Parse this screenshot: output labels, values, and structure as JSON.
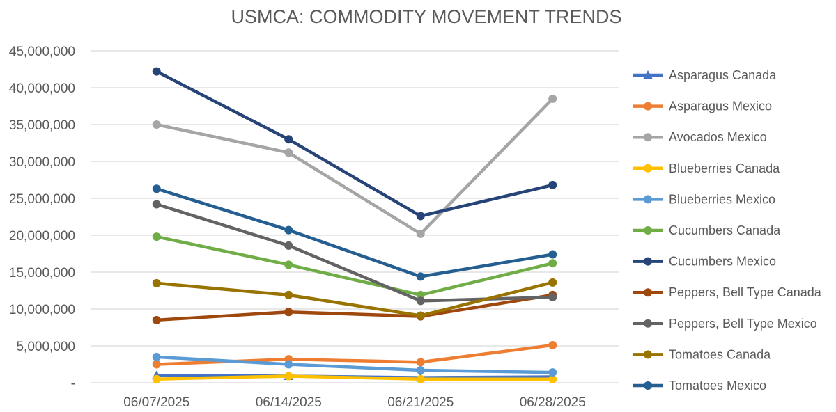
{
  "chart_data": {
    "type": "line",
    "title": "USMCA: COMMODITY MOVEMENT TRENDS",
    "categories": [
      "06/07/2025",
      "06/14/2025",
      "06/21/2025",
      "06/28/2025"
    ],
    "ylim": [
      0,
      45000000
    ],
    "yticks": [
      {
        "value": 0,
        "label": "-"
      },
      {
        "value": 5000000,
        "label": "5,000,000"
      },
      {
        "value": 10000000,
        "label": "10,000,000"
      },
      {
        "value": 15000000,
        "label": "15,000,000"
      },
      {
        "value": 20000000,
        "label": "20,000,000"
      },
      {
        "value": 25000000,
        "label": "25,000,000"
      },
      {
        "value": 30000000,
        "label": "30,000,000"
      },
      {
        "value": 35000000,
        "label": "35,000,000"
      },
      {
        "value": 40000000,
        "label": "40,000,000"
      },
      {
        "value": 45000000,
        "label": "45,000,000"
      }
    ],
    "grid": true,
    "legend_position": "right",
    "series": [
      {
        "name": "Asparagus Canada",
        "color": "#4472C4",
        "marker": "triangle",
        "values": [
          1000000,
          900000,
          700000,
          800000
        ]
      },
      {
        "name": "Asparagus Mexico",
        "color": "#ED7D31",
        "marker": "circle",
        "values": [
          2500000,
          3200000,
          2800000,
          5100000
        ]
      },
      {
        "name": "Avocados Mexico",
        "color": "#A5A5A5",
        "marker": "circle",
        "values": [
          35000000,
          31200000,
          20200000,
          38500000
        ]
      },
      {
        "name": "Blueberries Canada",
        "color": "#FFC000",
        "marker": "circle",
        "values": [
          500000,
          900000,
          500000,
          500000
        ]
      },
      {
        "name": "Blueberries Mexico",
        "color": "#5B9BD5",
        "marker": "circle",
        "values": [
          3500000,
          2500000,
          1700000,
          1400000
        ]
      },
      {
        "name": "Cucumbers Canada",
        "color": "#70AD47",
        "marker": "circle",
        "values": [
          19800000,
          16000000,
          11900000,
          16200000
        ]
      },
      {
        "name": "Cucumbers Mexico",
        "color": "#264478",
        "marker": "circle",
        "values": [
          42200000,
          33000000,
          22600000,
          26800000
        ]
      },
      {
        "name": "Peppers, Bell Type Canada",
        "color": "#9E480E",
        "marker": "circle",
        "values": [
          8500000,
          9600000,
          9000000,
          11900000
        ]
      },
      {
        "name": "Peppers, Bell Type Mexico",
        "color": "#636363",
        "marker": "circle",
        "values": [
          24200000,
          18600000,
          11100000,
          11600000
        ]
      },
      {
        "name": "Tomatoes Canada",
        "color": "#997300",
        "marker": "circle",
        "values": [
          13500000,
          11900000,
          9100000,
          13600000
        ]
      },
      {
        "name": "Tomatoes Mexico",
        "color": "#255E91",
        "marker": "circle",
        "values": [
          26300000,
          20700000,
          14400000,
          17400000
        ]
      }
    ]
  }
}
